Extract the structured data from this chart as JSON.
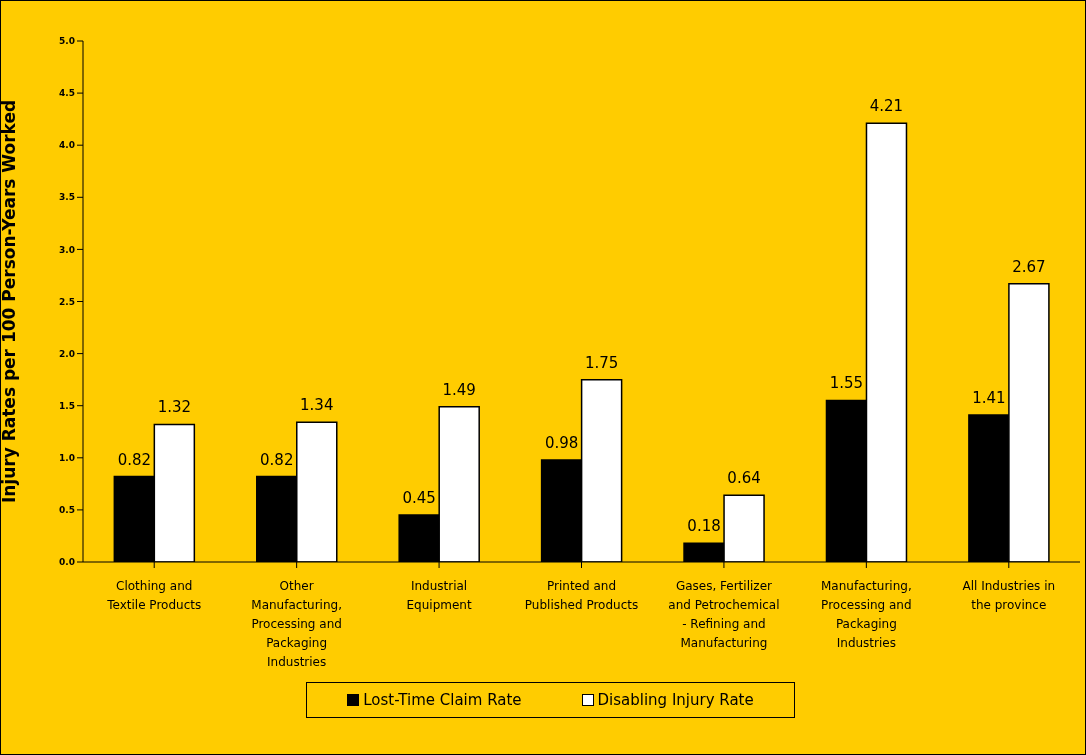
{
  "chart_data": {
    "type": "bar",
    "ylabel": "Injury Rates per 100 Person-Years Worked",
    "categories": [
      "Clothing and Textile Products",
      "Other Manufacturing, Processing and Packaging Industries",
      "Industrial Equipment",
      "Printed and Published Products",
      "Gases, Fertilizer and Petrochemical - Refining and Manufacturing",
      "Manufacturing, Processing and Packaging Industries",
      "All Industries in the province"
    ],
    "series": [
      {
        "name": "Lost-Time Claim Rate",
        "color": "#000000",
        "values": [
          0.82,
          0.82,
          0.45,
          0.98,
          0.18,
          1.55,
          1.41
        ]
      },
      {
        "name": "Disabling Injury Rate",
        "color": "#ffffff",
        "values": [
          1.32,
          1.34,
          1.49,
          1.75,
          0.64,
          4.21,
          2.67
        ]
      }
    ],
    "ylim": [
      0,
      5
    ],
    "yticks": [
      {
        "value": 0,
        "label": "0.0"
      },
      {
        "value": 0.5,
        "label": "0.5"
      },
      {
        "value": 1,
        "label": "1.0"
      },
      {
        "value": 1.5,
        "label": "1.5"
      },
      {
        "value": 2,
        "label": "2.0"
      },
      {
        "value": 2.5,
        "label": "2.5"
      },
      {
        "value": 3,
        "label": "3.0"
      },
      {
        "value": 3.5,
        "label": "3.5"
      },
      {
        "value": 4,
        "label": "4.0"
      },
      {
        "value": 4.5,
        "label": "4.5"
      },
      {
        "value": 5,
        "label": "5.0"
      }
    ],
    "data_labels": true,
    "grid": false,
    "legend": "bottom"
  }
}
